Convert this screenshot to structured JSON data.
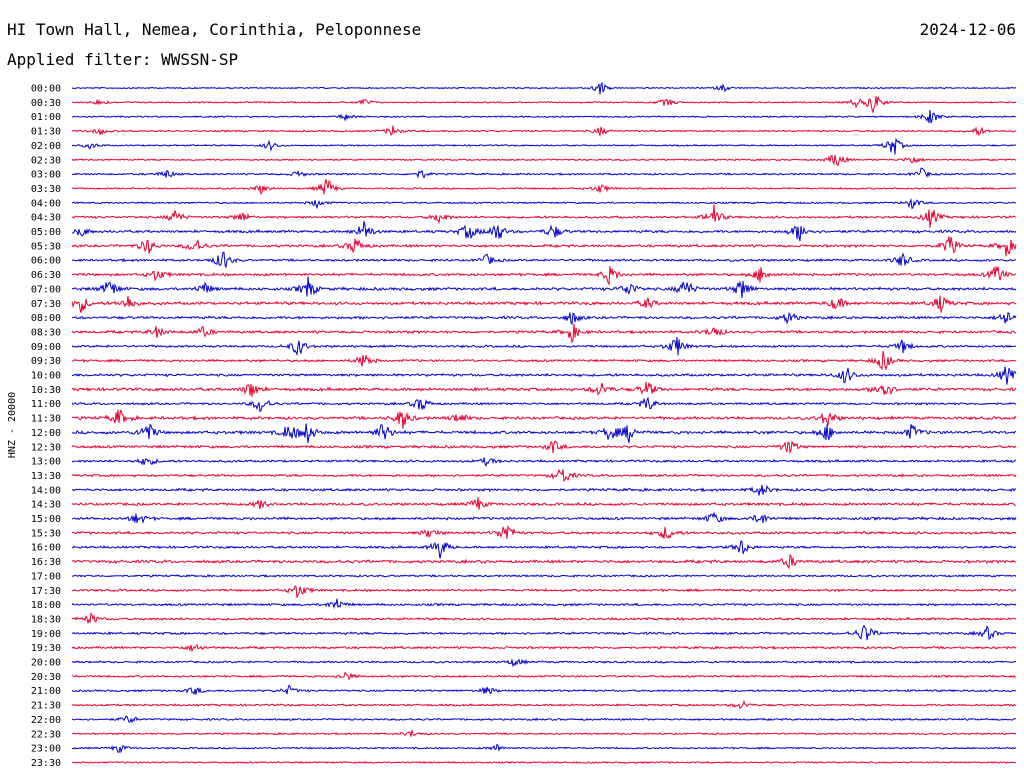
{
  "header": {
    "station": "HI Town Hall, Nemea, Corinthia, Peloponnese",
    "date": "2024-12-06",
    "filter_label": "Applied filter: WWSSN-SP"
  },
  "chart_data": {
    "type": "line",
    "title": "HI Town Hall, Nemea, Corinthia, Peloponnese",
    "subtitle": "Applied filter: WWSSN-SP",
    "ylabel": "HNZ - 20000",
    "colors": {
      "even_row": "#0000cc",
      "odd_row": "#e8002e"
    },
    "rows": [
      {
        "time": "00:00",
        "activity": 0.05,
        "bursts": [
          [
            0.56,
            0.6
          ],
          [
            0.69,
            0.3
          ]
        ]
      },
      {
        "time": "00:30",
        "activity": 0.08,
        "bursts": [
          [
            0.03,
            0.3
          ],
          [
            0.31,
            0.3
          ],
          [
            0.63,
            0.4
          ],
          [
            0.83,
            0.4
          ],
          [
            0.85,
            1.0
          ]
        ]
      },
      {
        "time": "01:00",
        "activity": 0.08,
        "bursts": [
          [
            0.29,
            0.3
          ],
          [
            0.91,
            0.7
          ]
        ]
      },
      {
        "time": "01:30",
        "activity": 0.1,
        "bursts": [
          [
            0.03,
            0.3
          ],
          [
            0.34,
            0.5
          ],
          [
            0.56,
            0.4
          ],
          [
            0.96,
            0.4
          ]
        ]
      },
      {
        "time": "02:00",
        "activity": 0.08,
        "bursts": [
          [
            0.02,
            0.3
          ],
          [
            0.21,
            0.4
          ],
          [
            0.87,
            1.0
          ]
        ]
      },
      {
        "time": "02:30",
        "activity": 0.1,
        "bursts": [
          [
            0.81,
            0.8
          ],
          [
            0.89,
            0.4
          ]
        ]
      },
      {
        "time": "03:00",
        "activity": 0.12,
        "bursts": [
          [
            0.1,
            0.4
          ],
          [
            0.24,
            0.3
          ],
          [
            0.37,
            0.4
          ],
          [
            0.9,
            0.5
          ]
        ]
      },
      {
        "time": "03:30",
        "activity": 0.1,
        "bursts": [
          [
            0.2,
            0.4
          ],
          [
            0.27,
            1.0
          ],
          [
            0.56,
            0.4
          ]
        ]
      },
      {
        "time": "04:00",
        "activity": 0.1,
        "bursts": [
          [
            0.26,
            0.4
          ],
          [
            0.89,
            0.5
          ]
        ]
      },
      {
        "time": "04:30",
        "activity": 0.2,
        "bursts": [
          [
            0.11,
            0.7
          ],
          [
            0.18,
            0.5
          ],
          [
            0.39,
            0.6
          ],
          [
            0.68,
            1.0
          ],
          [
            0.91,
            1.0
          ]
        ]
      },
      {
        "time": "05:00",
        "activity": 0.25,
        "bursts": [
          [
            0.01,
            0.4
          ],
          [
            0.31,
            1.0
          ],
          [
            0.42,
            0.8
          ],
          [
            0.45,
            1.0
          ],
          [
            0.51,
            0.7
          ],
          [
            0.77,
            0.9
          ]
        ]
      },
      {
        "time": "05:30",
        "activity": 0.25,
        "bursts": [
          [
            0.08,
            0.8
          ],
          [
            0.13,
            0.8
          ],
          [
            0.3,
            0.8
          ],
          [
            0.93,
            1.0
          ],
          [
            0.99,
            0.9
          ]
        ]
      },
      {
        "time": "06:00",
        "activity": 0.2,
        "bursts": [
          [
            0.16,
            1.0
          ],
          [
            0.44,
            0.5
          ],
          [
            0.88,
            0.7
          ]
        ]
      },
      {
        "time": "06:30",
        "activity": 0.25,
        "bursts": [
          [
            0.09,
            0.6
          ],
          [
            0.57,
            0.9
          ],
          [
            0.73,
            0.8
          ],
          [
            0.98,
            0.9
          ]
        ]
      },
      {
        "time": "07:00",
        "activity": 0.3,
        "bursts": [
          [
            0.04,
            0.9
          ],
          [
            0.14,
            0.6
          ],
          [
            0.25,
            1.0
          ],
          [
            0.59,
            0.7
          ],
          [
            0.65,
            1.0
          ],
          [
            0.71,
            1.0
          ]
        ]
      },
      {
        "time": "07:30",
        "activity": 0.3,
        "bursts": [
          [
            0.01,
            0.8
          ],
          [
            0.06,
            0.7
          ],
          [
            0.61,
            0.5
          ],
          [
            0.81,
            0.7
          ],
          [
            0.92,
            0.8
          ]
        ]
      },
      {
        "time": "08:00",
        "activity": 0.25,
        "bursts": [
          [
            0.53,
            0.6
          ],
          [
            0.76,
            0.6
          ],
          [
            0.99,
            0.8
          ]
        ]
      },
      {
        "time": "08:30",
        "activity": 0.25,
        "bursts": [
          [
            0.09,
            0.5
          ],
          [
            0.14,
            0.5
          ],
          [
            0.53,
            0.8
          ],
          [
            0.68,
            0.6
          ]
        ]
      },
      {
        "time": "09:00",
        "activity": 0.2,
        "bursts": [
          [
            0.24,
            0.9
          ],
          [
            0.64,
            1.0
          ],
          [
            0.88,
            0.6
          ]
        ]
      },
      {
        "time": "09:30",
        "activity": 0.2,
        "bursts": [
          [
            0.31,
            0.8
          ],
          [
            0.86,
            1.0
          ]
        ]
      },
      {
        "time": "10:00",
        "activity": 0.25,
        "bursts": [
          [
            0.82,
            0.8
          ],
          [
            0.99,
            0.9
          ]
        ]
      },
      {
        "time": "10:30",
        "activity": 0.3,
        "bursts": [
          [
            0.19,
            0.8
          ],
          [
            0.56,
            0.7
          ],
          [
            0.61,
            0.8
          ],
          [
            0.86,
            1.0
          ]
        ]
      },
      {
        "time": "11:00",
        "activity": 0.2,
        "bursts": [
          [
            0.2,
            0.8
          ],
          [
            0.37,
            0.7
          ],
          [
            0.61,
            0.7
          ]
        ]
      },
      {
        "time": "11:30",
        "activity": 0.3,
        "bursts": [
          [
            0.05,
            0.8
          ],
          [
            0.35,
            1.0
          ],
          [
            0.41,
            0.5
          ],
          [
            0.8,
            0.8
          ]
        ]
      },
      {
        "time": "12:00",
        "activity": 0.3,
        "bursts": [
          [
            0.08,
            1.0
          ],
          [
            0.23,
            0.8
          ],
          [
            0.25,
            1.0
          ],
          [
            0.33,
            1.0
          ],
          [
            0.57,
            0.8
          ],
          [
            0.59,
            0.8
          ],
          [
            0.8,
            0.8
          ],
          [
            0.89,
            0.7
          ]
        ]
      },
      {
        "time": "12:30",
        "activity": 0.25,
        "bursts": [
          [
            0.51,
            0.6
          ],
          [
            0.76,
            0.7
          ]
        ]
      },
      {
        "time": "13:00",
        "activity": 0.2,
        "bursts": [
          [
            0.08,
            0.5
          ],
          [
            0.44,
            0.4
          ]
        ]
      },
      {
        "time": "13:30",
        "activity": 0.2,
        "bursts": [
          [
            0.52,
            0.9
          ]
        ]
      },
      {
        "time": "14:00",
        "activity": 0.25,
        "bursts": [
          [
            0.73,
            0.6
          ]
        ]
      },
      {
        "time": "14:30",
        "activity": 0.25,
        "bursts": [
          [
            0.2,
            0.4
          ],
          [
            0.43,
            0.6
          ]
        ]
      },
      {
        "time": "15:00",
        "activity": 0.25,
        "bursts": [
          [
            0.07,
            0.6
          ],
          [
            0.68,
            0.6
          ],
          [
            0.73,
            0.6
          ]
        ]
      },
      {
        "time": "15:30",
        "activity": 0.25,
        "bursts": [
          [
            0.38,
            0.5
          ],
          [
            0.46,
            1.0
          ],
          [
            0.63,
            0.7
          ]
        ]
      },
      {
        "time": "16:00",
        "activity": 0.2,
        "bursts": [
          [
            0.39,
            1.0
          ],
          [
            0.71,
            0.8
          ]
        ]
      },
      {
        "time": "16:30",
        "activity": 0.3,
        "bursts": [
          [
            0.76,
            0.6
          ]
        ]
      },
      {
        "time": "17:00",
        "activity": 0.15,
        "bursts": []
      },
      {
        "time": "17:30",
        "activity": 0.2,
        "bursts": [
          [
            0.24,
            0.8
          ]
        ]
      },
      {
        "time": "18:00",
        "activity": 0.2,
        "bursts": [
          [
            0.28,
            0.6
          ]
        ]
      },
      {
        "time": "18:30",
        "activity": 0.2,
        "bursts": [
          [
            0.02,
            0.5
          ]
        ]
      },
      {
        "time": "19:00",
        "activity": 0.2,
        "bursts": [
          [
            0.84,
            1.0
          ],
          [
            0.97,
            0.6
          ]
        ]
      },
      {
        "time": "19:30",
        "activity": 0.2,
        "bursts": [
          [
            0.13,
            0.4
          ]
        ]
      },
      {
        "time": "20:00",
        "activity": 0.15,
        "bursts": [
          [
            0.47,
            0.4
          ]
        ]
      },
      {
        "time": "20:30",
        "activity": 0.15,
        "bursts": [
          [
            0.29,
            0.4
          ]
        ]
      },
      {
        "time": "21:00",
        "activity": 0.15,
        "bursts": [
          [
            0.13,
            0.4
          ],
          [
            0.23,
            0.4
          ],
          [
            0.44,
            0.4
          ]
        ]
      },
      {
        "time": "21:30",
        "activity": 0.15,
        "bursts": [
          [
            0.71,
            0.4
          ]
        ]
      },
      {
        "time": "22:00",
        "activity": 0.15,
        "bursts": [
          [
            0.06,
            0.4
          ]
        ]
      },
      {
        "time": "22:30",
        "activity": 0.12,
        "bursts": [
          [
            0.36,
            0.3
          ]
        ]
      },
      {
        "time": "23:00",
        "activity": 0.1,
        "bursts": [
          [
            0.05,
            0.4
          ],
          [
            0.45,
            0.3
          ]
        ]
      },
      {
        "time": "23:30",
        "activity": 0.1,
        "bursts": []
      }
    ]
  }
}
